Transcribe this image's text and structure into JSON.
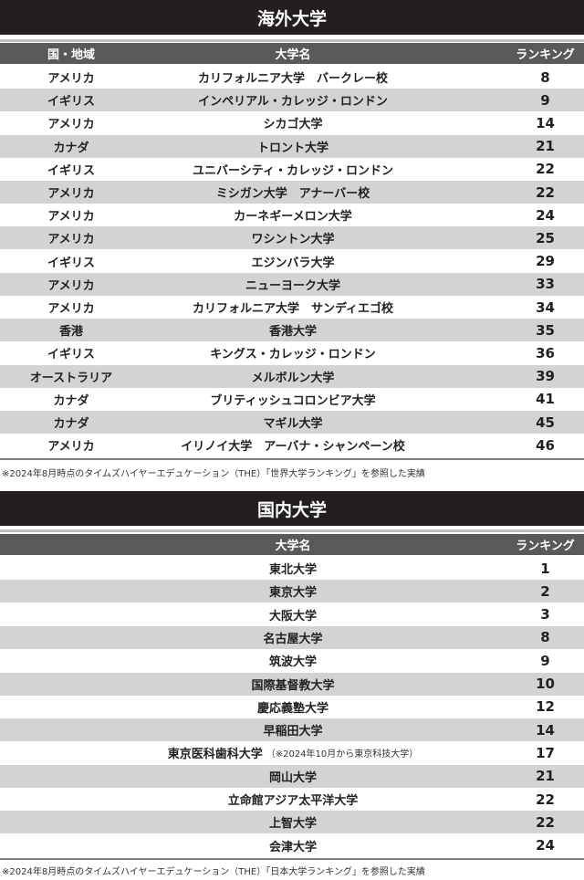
{
  "overseas": {
    "title": "海外大学",
    "headers": {
      "country": "国・地域",
      "name": "大学名",
      "rank": "ランキング"
    },
    "rows": [
      {
        "country": "アメリカ",
        "name": "カリフォルニア大学　バークレー校",
        "rank": "8"
      },
      {
        "country": "イギリス",
        "name": "インペリアル・カレッジ・ロンドン",
        "rank": "9"
      },
      {
        "country": "アメリカ",
        "name": "シカゴ大学",
        "rank": "14"
      },
      {
        "country": "カナダ",
        "name": "トロント大学",
        "rank": "21"
      },
      {
        "country": "イギリス",
        "name": "ユニバーシティ・カレッジ・ロンドン",
        "rank": "22"
      },
      {
        "country": "アメリカ",
        "name": "ミシガン大学　アナーバー校",
        "rank": "22"
      },
      {
        "country": "アメリカ",
        "name": "カーネギーメロン大学",
        "rank": "24"
      },
      {
        "country": "アメリカ",
        "name": "ワシントン大学",
        "rank": "25"
      },
      {
        "country": "イギリス",
        "name": "エジンバラ大学",
        "rank": "29"
      },
      {
        "country": "アメリカ",
        "name": "ニューヨーク大学",
        "rank": "33"
      },
      {
        "country": "アメリカ",
        "name": "カリフォルニア大学　サンディエゴ校",
        "rank": "34"
      },
      {
        "country": "香港",
        "name": "香港大学",
        "rank": "35"
      },
      {
        "country": "イギリス",
        "name": "キングス・カレッジ・ロンドン",
        "rank": "36"
      },
      {
        "country": "オーストラリア",
        "name": "メルボルン大学",
        "rank": "39"
      },
      {
        "country": "カナダ",
        "name": "ブリティッシュコロンビア大学",
        "rank": "41"
      },
      {
        "country": "カナダ",
        "name": "マギル大学",
        "rank": "45"
      },
      {
        "country": "アメリカ",
        "name": "イリノイ大学　アーバナ・シャンペーン校",
        "rank": "46"
      }
    ],
    "footnote": "※2024年8月時点のタイムズハイヤーエデュケーション（THE）「世界大学ランキング」を参照した実績"
  },
  "domestic": {
    "title": "国内大学",
    "headers": {
      "name": "大学名",
      "rank": "ランキング"
    },
    "rows": [
      {
        "name": "東北大学",
        "rank": "1"
      },
      {
        "name": "東京大学",
        "rank": "2"
      },
      {
        "name": "大阪大学",
        "rank": "3"
      },
      {
        "name": "名古屋大学",
        "rank": "8"
      },
      {
        "name": "筑波大学",
        "rank": "9"
      },
      {
        "name": "国際基督教大学",
        "rank": "10"
      },
      {
        "name": "慶応義塾大学",
        "rank": "12"
      },
      {
        "name": "早稲田大学",
        "rank": "14"
      },
      {
        "name": "東京医科歯科大学",
        "note": "（※2024年10月から東京科技大学）",
        "rank": "17"
      },
      {
        "name": "岡山大学",
        "rank": "21"
      },
      {
        "name": "立命館アジア太平洋大学",
        "rank": "22"
      },
      {
        "name": "上智大学",
        "rank": "22"
      },
      {
        "name": "会津大学",
        "rank": "24"
      }
    ],
    "footnote": "※2024年8月時点のタイムズハイヤーエデュケーション（THE）「日本大学ランキング」を参照した実績"
  }
}
